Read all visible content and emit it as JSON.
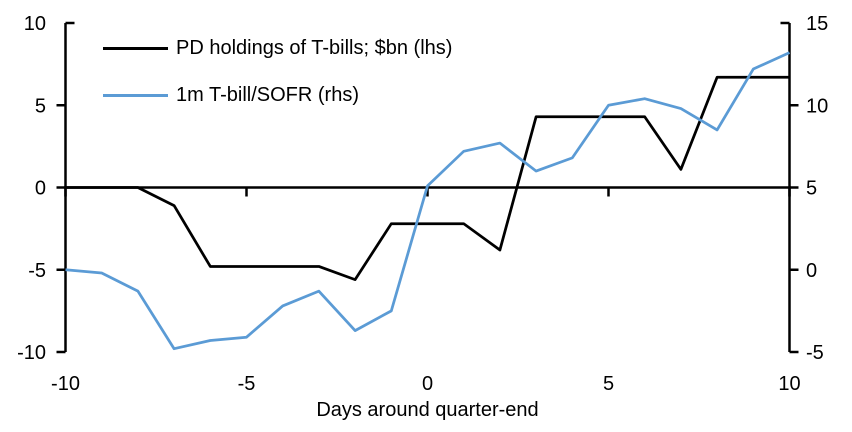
{
  "chart_data": {
    "type": "line",
    "x": [
      -10,
      -9,
      -8,
      -7,
      -6,
      -5,
      -4,
      -3,
      -2,
      -1,
      0,
      1,
      2,
      3,
      4,
      5,
      6,
      7,
      8,
      9,
      10
    ],
    "x_range": [
      -10,
      10
    ],
    "x_ticks": [
      -10,
      -5,
      0,
      5,
      10
    ],
    "xlabel": "Days around quarter-end",
    "left_axis": {
      "ylim": [
        -10,
        10
      ],
      "ticks": [
        -10,
        -5,
        0,
        5,
        10
      ]
    },
    "right_axis": {
      "ylim": [
        -5,
        15
      ],
      "ticks": [
        -5,
        0,
        5,
        10,
        15
      ]
    },
    "grid": false,
    "legend_position": "top-left",
    "series": [
      {
        "name": "PD holdings of T-bills; $bn (lhs)",
        "axis": "left",
        "color": "#000000",
        "values": [
          0,
          0,
          0,
          -1.1,
          -4.8,
          -4.8,
          -4.8,
          -4.8,
          -5.6,
          -2.2,
          -2.2,
          -2.2,
          -3.8,
          4.3,
          4.3,
          4.3,
          4.3,
          1.1,
          6.7,
          6.7,
          6.7
        ]
      },
      {
        "name": "1m T-bill/SOFR (rhs)",
        "axis": "right",
        "color": "#5B9BD5",
        "values": [
          0.0,
          -0.2,
          -1.3,
          -4.8,
          -4.3,
          -4.1,
          -2.2,
          -1.3,
          -3.7,
          -2.5,
          5.1,
          7.2,
          7.7,
          6.0,
          6.8,
          10.0,
          10.4,
          9.8,
          8.5,
          12.2,
          13.2
        ]
      }
    ]
  },
  "colors": {
    "background": "#ffffff",
    "axis": "#000000"
  }
}
